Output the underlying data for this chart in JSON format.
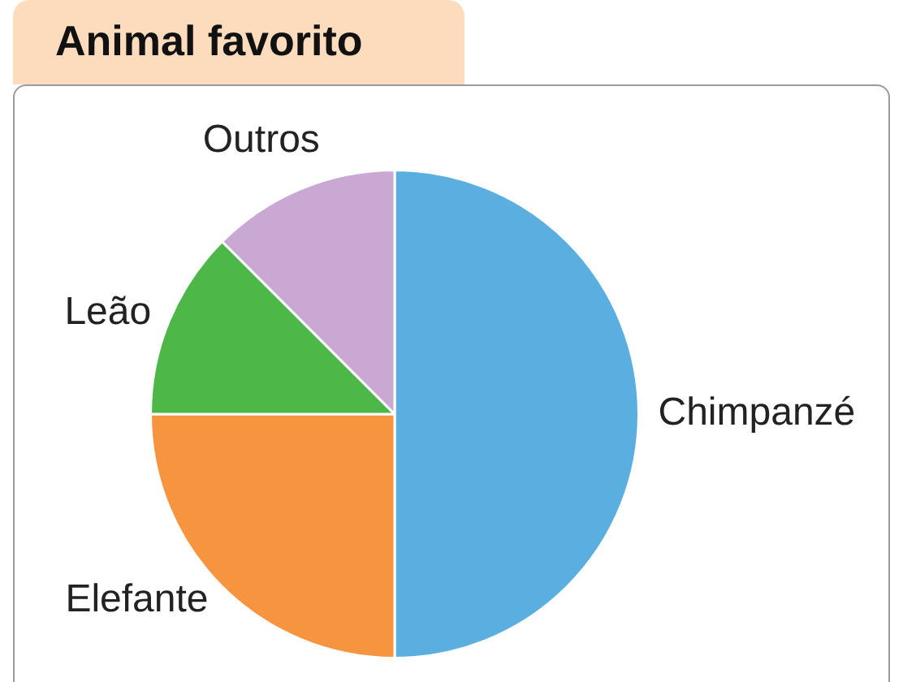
{
  "chart_data": {
    "type": "pie",
    "title": "Animal favorito",
    "categories": [
      "Chimpanzé",
      "Elefante",
      "Leão",
      "Outros"
    ],
    "values": [
      50,
      25,
      12.5,
      12.5
    ],
    "colors": [
      "#5aafe0",
      "#f79440",
      "#4db848",
      "#c9a8d4"
    ],
    "legend": false
  }
}
